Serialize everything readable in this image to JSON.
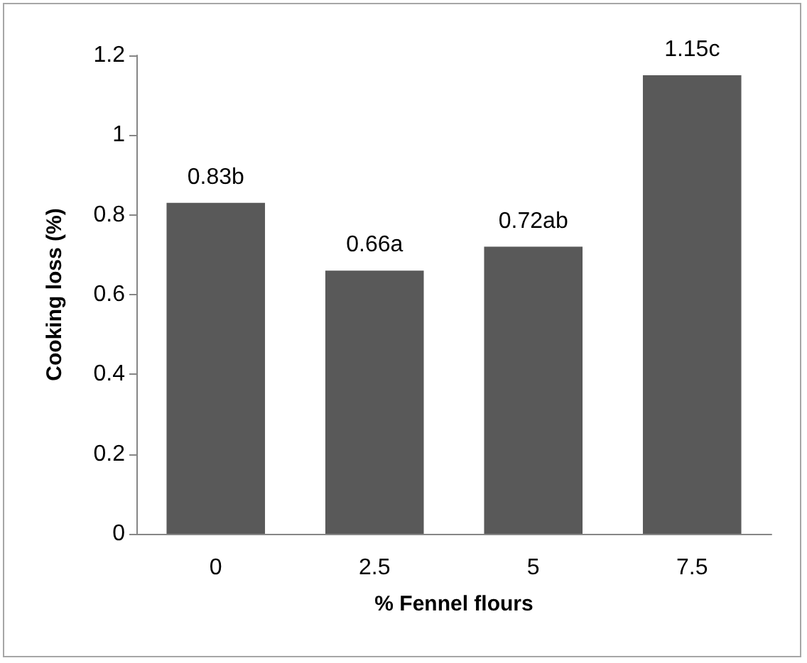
{
  "chart_data": {
    "type": "bar",
    "xlabel": "% Fennel flours",
    "ylabel": "Cooking loss (%)",
    "categories": [
      "0",
      "2.5",
      "5",
      "7.5"
    ],
    "values": [
      0.83,
      0.66,
      0.72,
      1.15
    ],
    "value_labels": [
      "0.83b",
      "0.66a",
      "0.72ab",
      "1.15c"
    ],
    "color": "#595959",
    "ylim": [
      0,
      1.2
    ],
    "yticks": [
      0,
      0.2,
      0.4,
      0.6,
      0.8,
      1,
      1.2
    ],
    "grid": false
  }
}
